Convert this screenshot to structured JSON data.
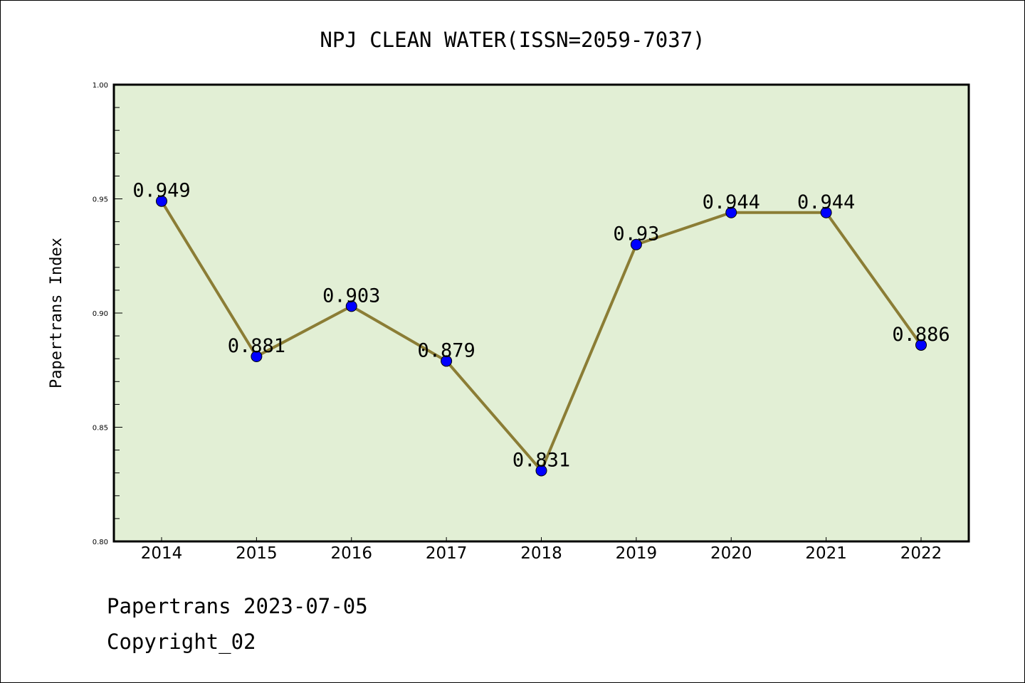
{
  "chart_data": {
    "type": "line",
    "title": "NPJ CLEAN WATER(ISSN=2059-7037)",
    "xlabel": "",
    "ylabel": "Papertrans Index",
    "categories": [
      "2014",
      "2015",
      "2016",
      "2017",
      "2018",
      "2019",
      "2020",
      "2021",
      "2022"
    ],
    "values": [
      0.949,
      0.881,
      0.903,
      0.879,
      0.831,
      0.93,
      0.944,
      0.944,
      0.886
    ],
    "data_labels": [
      "0.949",
      "0.881",
      "0.903",
      "0.879",
      "0.831",
      "0.93",
      "0.944",
      "0.944",
      "0.886"
    ],
    "ylim": [
      0.8,
      1.0
    ],
    "yticks": [
      "0.80",
      "0.85",
      "0.90",
      "0.95",
      "1.00"
    ],
    "grid": false,
    "colors": {
      "background": "#e2efd5",
      "line": "#8b7d35",
      "marker": "#0000ff"
    }
  },
  "footer": {
    "line1": "Papertrans 2023-07-05",
    "line2": "Copyright_02"
  }
}
